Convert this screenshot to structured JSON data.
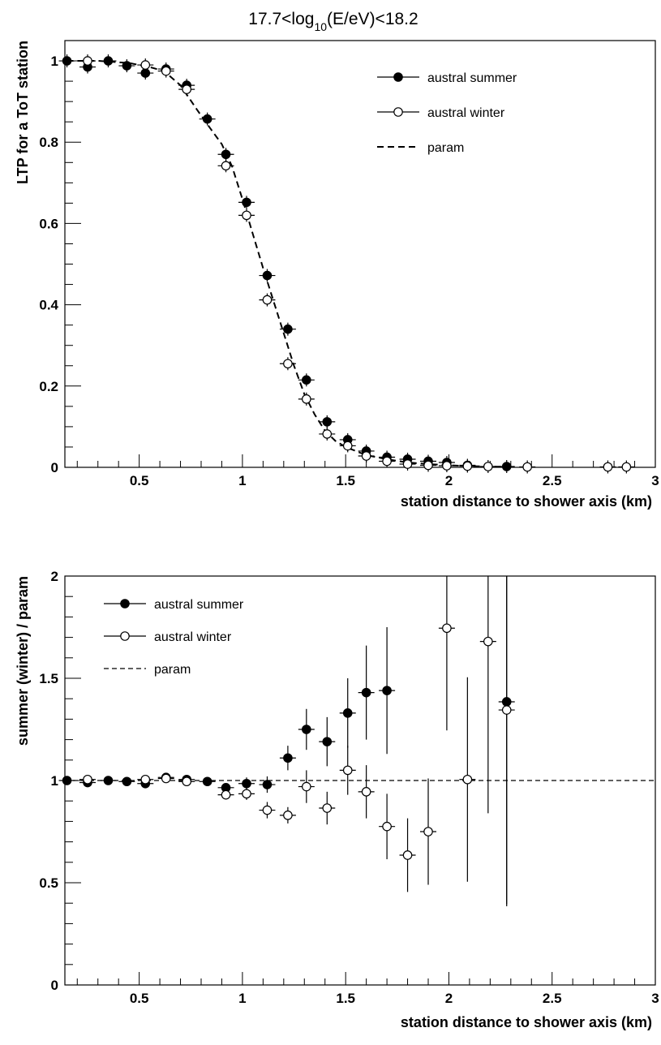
{
  "chart_data": [
    {
      "type": "scatter",
      "title": "17.7<log10(E/eV)<18.2",
      "title_parts": {
        "base": "17.7<log",
        "sub": "10",
        "rest": "(E/eV)<18.2"
      },
      "xlabel": "station distance to shower axis (km)",
      "ylabel": "LTP for a ToT station",
      "xlim": [
        0.14,
        3.0
      ],
      "ylim": [
        0,
        1.05
      ],
      "xticks": [
        "0.5",
        "1",
        "1.5",
        "2",
        "2.5",
        "3"
      ],
      "yticks": [
        "0",
        "0.2",
        "0.4",
        "0.6",
        "0.8",
        "1"
      ],
      "legend_position": "top-right",
      "series": [
        {
          "name": "austral summer",
          "marker": "filled-circle",
          "points": [
            [
              0.15,
              1.0
            ],
            [
              0.25,
              0.985
            ],
            [
              0.35,
              1.0
            ],
            [
              0.44,
              0.988
            ],
            [
              0.53,
              0.97
            ],
            [
              0.63,
              0.98
            ],
            [
              0.73,
              0.94
            ],
            [
              0.83,
              0.857
            ],
            [
              0.92,
              0.77
            ],
            [
              1.02,
              0.652
            ],
            [
              1.12,
              0.472
            ],
            [
              1.22,
              0.34
            ],
            [
              1.31,
              0.215
            ],
            [
              1.41,
              0.112
            ],
            [
              1.51,
              0.068
            ],
            [
              1.6,
              0.04
            ],
            [
              1.7,
              0.025
            ],
            [
              1.8,
              0.02
            ],
            [
              1.9,
              0.015
            ],
            [
              1.99,
              0.012
            ],
            [
              2.09,
              0.005
            ],
            [
              2.28,
              0.002
            ]
          ]
        },
        {
          "name": "austral winter",
          "marker": "open-circle",
          "points": [
            [
              0.25,
              1.0
            ],
            [
              0.53,
              0.99
            ],
            [
              0.63,
              0.975
            ],
            [
              0.73,
              0.93
            ],
            [
              0.92,
              0.742
            ],
            [
              1.02,
              0.62
            ],
            [
              1.12,
              0.412
            ],
            [
              1.22,
              0.255
            ],
            [
              1.31,
              0.168
            ],
            [
              1.41,
              0.082
            ],
            [
              1.51,
              0.053
            ],
            [
              1.6,
              0.028
            ],
            [
              1.7,
              0.015
            ],
            [
              1.8,
              0.008
            ],
            [
              1.9,
              0.005
            ],
            [
              1.99,
              0.004
            ],
            [
              2.09,
              0.003
            ],
            [
              2.19,
              0.002
            ],
            [
              2.38,
              0.001
            ],
            [
              2.77,
              0.001
            ],
            [
              2.86,
              0.001
            ]
          ]
        },
        {
          "name": "param",
          "line": "dashed",
          "x": [
            0.15,
            0.3,
            0.45,
            0.55,
            0.62,
            0.7,
            0.78,
            0.85,
            0.9,
            0.95,
            1.0,
            1.05,
            1.1,
            1.15,
            1.2,
            1.25,
            1.3,
            1.35,
            1.4,
            1.45,
            1.5,
            1.6,
            1.7,
            1.8,
            1.9,
            2.0,
            2.1,
            2.2,
            2.3
          ],
          "y": [
            1.0,
            1.0,
            0.995,
            0.985,
            0.975,
            0.94,
            0.88,
            0.83,
            0.795,
            0.74,
            0.66,
            0.575,
            0.49,
            0.41,
            0.33,
            0.25,
            0.18,
            0.13,
            0.09,
            0.065,
            0.05,
            0.03,
            0.02,
            0.012,
            0.008,
            0.005,
            0.003,
            0.002,
            0.001
          ]
        }
      ]
    },
    {
      "type": "scatter",
      "title": "",
      "xlabel": "station distance to shower axis (km)",
      "ylabel": "summer (winter) / param",
      "xlim": [
        0.14,
        3.0
      ],
      "ylim": [
        0,
        2
      ],
      "xticks": [
        "0.5",
        "1",
        "1.5",
        "2",
        "2.5",
        "3"
      ],
      "yticks": [
        "0",
        "0.5",
        "1",
        "1.5",
        "2"
      ],
      "legend_position": "top-left",
      "series": [
        {
          "name": "austral summer",
          "marker": "filled-circle",
          "points": [
            [
              0.15,
              1.0,
              0.01
            ],
            [
              0.25,
              0.99,
              0.01
            ],
            [
              0.35,
              1.0,
              0.01
            ],
            [
              0.44,
              0.995,
              0.01
            ],
            [
              0.53,
              0.985,
              0.01
            ],
            [
              0.63,
              1.015,
              0.01
            ],
            [
              0.73,
              1.005,
              0.01
            ],
            [
              0.83,
              0.995,
              0.015
            ],
            [
              0.92,
              0.965,
              0.02
            ],
            [
              1.02,
              0.985,
              0.03
            ],
            [
              1.12,
              0.98,
              0.04
            ],
            [
              1.22,
              1.11,
              0.06
            ],
            [
              1.31,
              1.25,
              0.1
            ],
            [
              1.41,
              1.19,
              0.12
            ],
            [
              1.51,
              1.33,
              0.17
            ],
            [
              1.6,
              1.43,
              0.23
            ],
            [
              1.7,
              1.44,
              0.31
            ],
            [
              2.28,
              1.385,
              1.0
            ]
          ]
        },
        {
          "name": "austral winter",
          "marker": "open-circle",
          "points": [
            [
              0.25,
              1.005,
              0.01
            ],
            [
              0.53,
              1.005,
              0.01
            ],
            [
              0.63,
              1.01,
              0.01
            ],
            [
              0.73,
              0.995,
              0.01
            ],
            [
              0.92,
              0.93,
              0.02
            ],
            [
              1.02,
              0.935,
              0.03
            ],
            [
              1.12,
              0.855,
              0.04
            ],
            [
              1.22,
              0.83,
              0.04
            ],
            [
              1.31,
              0.97,
              0.08
            ],
            [
              1.41,
              0.865,
              0.08
            ],
            [
              1.51,
              1.05,
              0.12
            ],
            [
              1.6,
              0.945,
              0.13
            ],
            [
              1.7,
              0.775,
              0.16
            ],
            [
              1.8,
              0.635,
              0.18
            ],
            [
              1.9,
              0.75,
              0.26
            ],
            [
              1.99,
              1.745,
              0.5
            ],
            [
              2.09,
              1.005,
              0.5
            ],
            [
              2.19,
              1.68,
              0.84
            ],
            [
              2.28,
              1.345,
              0.95
            ]
          ]
        },
        {
          "name": "param",
          "line": "dashed",
          "x": [
            0.14,
            3.0
          ],
          "y": [
            1.0,
            1.0
          ]
        }
      ]
    }
  ]
}
